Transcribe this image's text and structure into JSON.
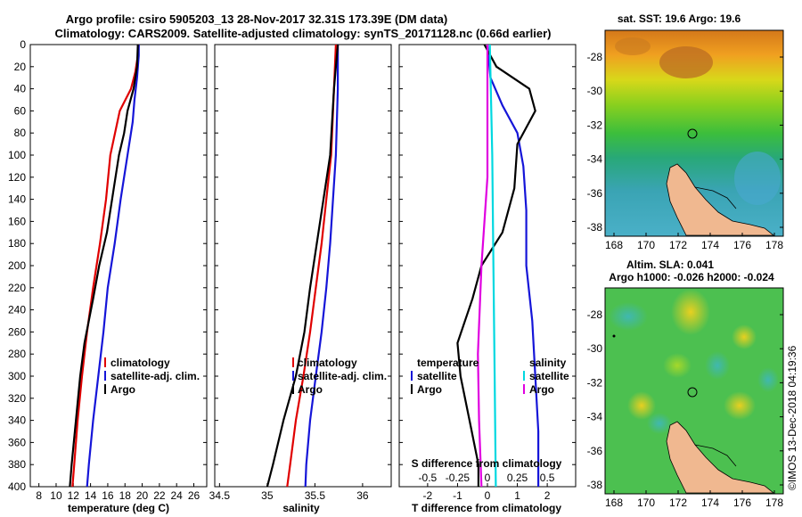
{
  "header": {
    "title_line1": "Argo profile: csiro 5905203_13 28-Nov-2017 32.31S 173.39E (DM data)",
    "title_line2": "Climatology: CARS2009. Satellite-adjusted climatology: synTS_20171128.nc (0.66d earlier)"
  },
  "colors": {
    "climatology": "#e00000",
    "satellite": "#1515d8",
    "argo": "#000000",
    "sat_salinity": "#00d8e0",
    "argo_salinity": "#e000e0"
  },
  "depth_ticks": [
    "0",
    "20",
    "40",
    "60",
    "80",
    "100",
    "120",
    "140",
    "160",
    "180",
    "200",
    "220",
    "240",
    "260",
    "280",
    "300",
    "320",
    "340",
    "360",
    "380",
    "400"
  ],
  "chart_data": [
    {
      "type": "line",
      "panel": "temperature",
      "xlabel": "temperature (deg C)",
      "ylabel": "depth",
      "xlim": [
        7,
        27.5
      ],
      "ylim": [
        400,
        0
      ],
      "xtick_labels": [
        "8",
        "10",
        "12",
        "14",
        "16",
        "18",
        "20",
        "22",
        "24",
        "26"
      ],
      "legend": [
        "climatology",
        "satellite-adj. clim.",
        "Argo"
      ],
      "series": [
        {
          "name": "climatology",
          "color": "#e00000",
          "points": [
            [
              19.6,
              0
            ],
            [
              19.5,
              10
            ],
            [
              19.2,
              25
            ],
            [
              18.7,
              40
            ],
            [
              17.4,
              60
            ],
            [
              16.3,
              100
            ],
            [
              15.8,
              140
            ],
            [
              15.1,
              180
            ],
            [
              14.3,
              220
            ],
            [
              13.6,
              260
            ],
            [
              13.0,
              300
            ],
            [
              12.5,
              340
            ],
            [
              12.1,
              380
            ],
            [
              11.9,
              400
            ]
          ]
        },
        {
          "name": "satellite-adj. clim.",
          "color": "#1515d8",
          "points": [
            [
              19.6,
              0
            ],
            [
              19.6,
              10
            ],
            [
              19.4,
              30
            ],
            [
              19.1,
              50
            ],
            [
              18.9,
              70
            ],
            [
              18.3,
              100
            ],
            [
              17.5,
              140
            ],
            [
              16.8,
              180
            ],
            [
              16.0,
              220
            ],
            [
              15.5,
              260
            ],
            [
              14.9,
              300
            ],
            [
              14.3,
              340
            ],
            [
              13.8,
              380
            ],
            [
              13.6,
              400
            ]
          ]
        },
        {
          "name": "Argo",
          "color": "#000000",
          "points": [
            [
              19.5,
              0
            ],
            [
              19.4,
              20
            ],
            [
              19.0,
              40
            ],
            [
              18.3,
              60
            ],
            [
              17.9,
              80
            ],
            [
              17.3,
              100
            ],
            [
              16.7,
              130
            ],
            [
              15.9,
              170
            ],
            [
              15.0,
              200
            ],
            [
              14.3,
              230
            ],
            [
              13.3,
              270
            ],
            [
              12.8,
              300
            ],
            [
              12.3,
              340
            ],
            [
              11.8,
              380
            ],
            [
              11.6,
              400
            ]
          ]
        }
      ]
    },
    {
      "type": "line",
      "panel": "salinity",
      "xlabel": "salinity",
      "ylabel": "depth",
      "xlim": [
        34.45,
        36.3
      ],
      "ylim": [
        400,
        0
      ],
      "xtick_labels": [
        "34.5",
        "35",
        "35.5",
        "36"
      ],
      "legend": [
        "climatology",
        "satellite-adj. clim.",
        "Argo"
      ],
      "series": [
        {
          "name": "climatology",
          "color": "#e00000",
          "points": [
            [
              35.72,
              0
            ],
            [
              35.7,
              40
            ],
            [
              35.67,
              100
            ],
            [
              35.62,
              140
            ],
            [
              35.57,
              180
            ],
            [
              35.51,
              220
            ],
            [
              35.45,
              260
            ],
            [
              35.38,
              300
            ],
            [
              35.3,
              340
            ],
            [
              35.24,
              380
            ],
            [
              35.21,
              400
            ]
          ]
        },
        {
          "name": "satellite-adj. clim.",
          "color": "#1515d8",
          "points": [
            [
              35.74,
              0
            ],
            [
              35.74,
              40
            ],
            [
              35.72,
              100
            ],
            [
              35.69,
              140
            ],
            [
              35.66,
              180
            ],
            [
              35.62,
              220
            ],
            [
              35.57,
              260
            ],
            [
              35.51,
              300
            ],
            [
              35.45,
              340
            ],
            [
              35.41,
              380
            ],
            [
              35.4,
              400
            ]
          ]
        },
        {
          "name": "Argo",
          "color": "#000000",
          "points": [
            [
              35.74,
              0
            ],
            [
              35.7,
              40
            ],
            [
              35.66,
              100
            ],
            [
              35.59,
              140
            ],
            [
              35.52,
              180
            ],
            [
              35.45,
              220
            ],
            [
              35.39,
              260
            ],
            [
              35.3,
              300
            ],
            [
              35.17,
              340
            ],
            [
              35.06,
              380
            ],
            [
              35.0,
              400
            ]
          ]
        }
      ]
    },
    {
      "type": "line",
      "panel": "difference",
      "xlabel": "T difference from climatology",
      "xlabel_top": "S difference from climatology",
      "xlim": [
        -2.95,
        2.95
      ],
      "xlim_top": [
        -0.7375,
        0.7375
      ],
      "ylim": [
        400,
        0
      ],
      "xtick_labels": [
        "-2",
        "-1",
        "0",
        "1",
        "2"
      ],
      "xtick_labels_top": [
        "-0.5",
        "-0.25",
        "0",
        "0.25",
        "0.5"
      ],
      "legend_temperature": {
        "heading": "temperature",
        "items": [
          "satellite",
          "Argo"
        ]
      },
      "legend_salinity": {
        "heading": "salinity",
        "items": [
          "satellite",
          "Argo"
        ]
      },
      "series": [
        {
          "name": "T satellite",
          "color": "#1515d8",
          "axis": "T",
          "points": [
            [
              0.0,
              0
            ],
            [
              0.1,
              30
            ],
            [
              0.5,
              55
            ],
            [
              1.0,
              80
            ],
            [
              1.2,
              110
            ],
            [
              1.3,
              150
            ],
            [
              1.3,
              200
            ],
            [
              1.5,
              250
            ],
            [
              1.6,
              300
            ],
            [
              1.7,
              350
            ],
            [
              1.7,
              400
            ]
          ]
        },
        {
          "name": "T Argo",
          "color": "#000000",
          "axis": "T",
          "points": [
            [
              -0.1,
              0
            ],
            [
              0.3,
              20
            ],
            [
              1.4,
              40
            ],
            [
              1.6,
              60
            ],
            [
              1.0,
              90
            ],
            [
              0.9,
              130
            ],
            [
              0.5,
              170
            ],
            [
              -0.2,
              200
            ],
            [
              -0.5,
              230
            ],
            [
              -1.0,
              270
            ],
            [
              -0.9,
              300
            ],
            [
              -0.6,
              340
            ],
            [
              -0.3,
              380
            ],
            [
              -0.3,
              400
            ]
          ]
        },
        {
          "name": "S satellite",
          "color": "#00d8e0",
          "axis": "S",
          "points": [
            [
              0.02,
              0
            ],
            [
              0.04,
              100
            ],
            [
              0.05,
              200
            ],
            [
              0.06,
              300
            ],
            [
              0.07,
              400
            ]
          ]
        },
        {
          "name": "S Argo",
          "color": "#e000e0",
          "axis": "S",
          "points": [
            [
              0.0,
              0
            ],
            [
              0.0,
              60
            ],
            [
              0.0,
              120
            ],
            [
              -0.05,
              200
            ],
            [
              -0.08,
              280
            ],
            [
              -0.07,
              340
            ],
            [
              -0.05,
              400
            ]
          ]
        }
      ]
    }
  ],
  "maps": {
    "sst": {
      "title": "sat. SST: 19.6 Argo: 19.6",
      "lat_ticks": [
        "-28",
        "-30",
        "-32",
        "-34",
        "-36",
        "-38"
      ],
      "lon_ticks": [
        "168",
        "170",
        "172",
        "174",
        "176",
        "178"
      ]
    },
    "sla": {
      "title": "Altim. SLA: 0.041",
      "subtitle": "Argo h1000: -0.026 h2000: -0.024",
      "lat_ticks": [
        "-28",
        "-30",
        "-32",
        "-34",
        "-36",
        "-38"
      ],
      "lon_ticks": [
        "168",
        "170",
        "172",
        "174",
        "176",
        "178"
      ]
    }
  },
  "footer": {
    "credit": "©IMOS 13-Dec-2018 04:19:36"
  }
}
